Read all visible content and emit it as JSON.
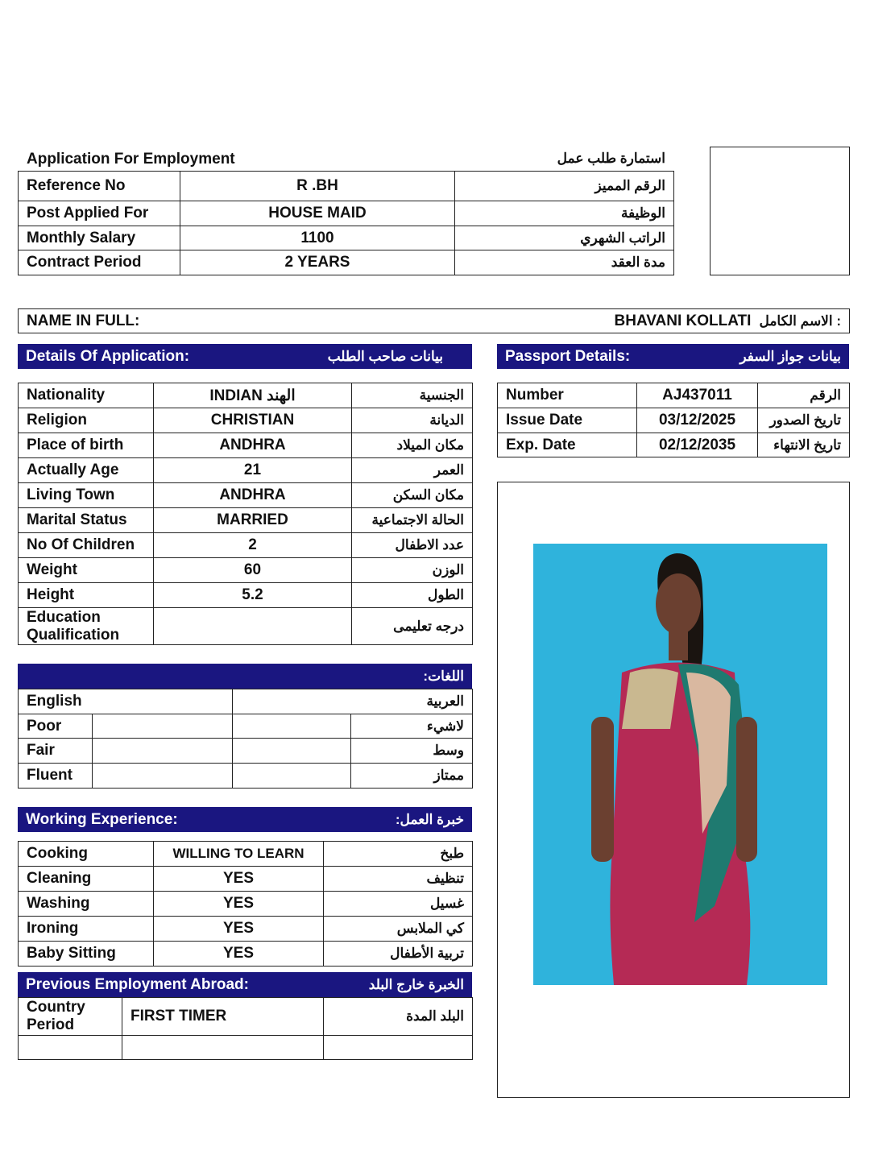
{
  "header": {
    "title_en": "Application For Employment",
    "title_ar": "استمارة طلب  عمل"
  },
  "top_rows": [
    {
      "label": "Reference No",
      "value": "R .BH",
      "ar": "الرقم المميز"
    },
    {
      "label": "Post Applied For",
      "value": "HOUSE MAID",
      "ar": "الوظيفة"
    },
    {
      "label": "Monthly Salary",
      "value": "1100",
      "ar": "الراتب الشهري"
    },
    {
      "label": "Contract Period",
      "value": "2 YEARS",
      "ar": "مدة العقد"
    }
  ],
  "name": {
    "label": "NAME IN FULL:",
    "value": "BHAVANI KOLLATI",
    "ar": ": الاسم الكامل"
  },
  "details": {
    "title": "Details Of Application:",
    "title_ar": "بيانات صاحب الطلب",
    "rows": [
      {
        "label": "Nationality",
        "value": "INDIAN الهند",
        "ar": "الجنسية"
      },
      {
        "label": "Religion",
        "value": "CHRISTIAN",
        "ar": "الديانة"
      },
      {
        "label": "Place of birth",
        "value": "ANDHRA",
        "ar": "مكان الميلاد"
      },
      {
        "label": "Actually Age",
        "value": "21",
        "ar": "العمر"
      },
      {
        "label": "Living Town",
        "value": "ANDHRA",
        "ar": "مكان السكن"
      },
      {
        "label": "Marital Status",
        "value": "MARRIED",
        "ar": "الحالة الاجتماعية"
      },
      {
        "label": "No Of Children",
        "value": "2",
        "ar": "عدد الاطفال"
      },
      {
        "label": "Weight",
        "value": "60",
        "ar": "الوزن"
      },
      {
        "label": "Height",
        "value": "5.2",
        "ar": "الطول"
      }
    ],
    "education": {
      "label_1": "Education",
      "label_2": "Qualification",
      "value": "",
      "ar": "درجه تعليمى"
    }
  },
  "passport": {
    "title": "Passport Details:",
    "title_ar": "بيانات جواز السفر",
    "rows": [
      {
        "label": "Number",
        "value": "AJ437011",
        "ar": "الرقم"
      },
      {
        "label": "Issue Date",
        "value": "03/12/2025",
        "ar": "تاريخ الصدور"
      },
      {
        "label": "Exp. Date",
        "value": "02/12/2035",
        "ar": "تاريخ الانتهاء"
      }
    ]
  },
  "languages": {
    "title_ar": "اللغات:",
    "english": "English",
    "arabic": "العربية",
    "levels": [
      {
        "label": "Poor",
        "ar": "لاشيء"
      },
      {
        "label": "Fair",
        "ar": "وسط"
      },
      {
        "label": "Fluent",
        "ar": "ممتاز"
      }
    ]
  },
  "experience": {
    "title": "Working Experience:",
    "title_ar": "خبرة العمل:",
    "rows": [
      {
        "label": "Cooking",
        "value": "WILLING TO LEARN",
        "ar": "طبخ"
      },
      {
        "label": "Cleaning",
        "value": "YES",
        "ar": "تنظيف"
      },
      {
        "label": "Washing",
        "value": "YES",
        "ar": "غسيل"
      },
      {
        "label": "Ironing",
        "value": "YES",
        "ar": "كي الملابس"
      },
      {
        "label": "Baby Sitting",
        "value": "YES",
        "ar": "تربية الأطفال"
      }
    ]
  },
  "previous": {
    "title": "Previous Employment Abroad:",
    "title_ar": "الخبرة خارج البلد",
    "label_1": "Country",
    "label_2": "Period",
    "value": "FIRST TIMER",
    "ar": "البلد المدة"
  },
  "colors": {
    "header_bar": "#1a1680",
    "photo_bg": "#2fb3dc"
  }
}
